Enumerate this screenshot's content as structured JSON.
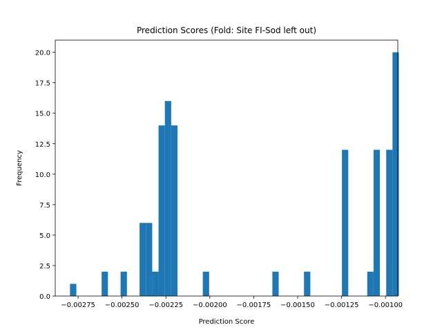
{
  "chart_data": {
    "type": "bar",
    "subtype": "histogram",
    "title": "Prediction Scores (Fold: Site FI-Sod left out)",
    "xlabel": "Prediction Score",
    "ylabel": "Frequency",
    "xlim": [
      -0.00288,
      -0.00093
    ],
    "ylim": [
      0,
      21
    ],
    "bar_color": "#1f77b4",
    "grid": false,
    "legend": "none",
    "bin_width": 3.6e-05,
    "bins": [
      {
        "start": -0.002796,
        "end": -0.00276,
        "value": 1
      },
      {
        "start": -0.002616,
        "end": -0.00258,
        "value": 2
      },
      {
        "start": -0.002508,
        "end": -0.002472,
        "value": 2
      },
      {
        "start": -0.0024,
        "end": -0.002364,
        "value": 6
      },
      {
        "start": -0.002364,
        "end": -0.002328,
        "value": 6
      },
      {
        "start": -0.002328,
        "end": -0.002292,
        "value": 2
      },
      {
        "start": -0.002292,
        "end": -0.002256,
        "value": 14
      },
      {
        "start": -0.002256,
        "end": -0.00222,
        "value": 16
      },
      {
        "start": -0.00222,
        "end": -0.002184,
        "value": 14
      },
      {
        "start": -0.00204,
        "end": -0.002004,
        "value": 2
      },
      {
        "start": -0.001644,
        "end": -0.001608,
        "value": 2
      },
      {
        "start": -0.001464,
        "end": -0.001428,
        "value": 2
      },
      {
        "start": -0.001248,
        "end": -0.001212,
        "value": 12
      },
      {
        "start": -0.001104,
        "end": -0.001068,
        "value": 2
      },
      {
        "start": -0.001068,
        "end": -0.001032,
        "value": 12
      },
      {
        "start": -0.000996,
        "end": -0.00096,
        "value": 12
      },
      {
        "start": -0.00096,
        "end": -0.000924,
        "value": 20
      }
    ],
    "x_ticks": [
      {
        "value": -0.00275,
        "label": "−0.00275"
      },
      {
        "value": -0.0025,
        "label": "−0.00250"
      },
      {
        "value": -0.00225,
        "label": "−0.00225"
      },
      {
        "value": -0.002,
        "label": "−0.00200"
      },
      {
        "value": -0.00175,
        "label": "−0.00175"
      },
      {
        "value": -0.0015,
        "label": "−0.00150"
      },
      {
        "value": -0.00125,
        "label": "−0.00125"
      },
      {
        "value": -0.001,
        "label": "−0.00100"
      }
    ],
    "y_ticks": [
      {
        "value": 0,
        "label": "0.0"
      },
      {
        "value": 2.5,
        "label": "2.5"
      },
      {
        "value": 5,
        "label": "5.0"
      },
      {
        "value": 7.5,
        "label": "7.5"
      },
      {
        "value": 10,
        "label": "10.0"
      },
      {
        "value": 12.5,
        "label": "12.5"
      },
      {
        "value": 15,
        "label": "15.0"
      },
      {
        "value": 17.5,
        "label": "17.5"
      },
      {
        "value": 20,
        "label": "20.0"
      }
    ]
  }
}
